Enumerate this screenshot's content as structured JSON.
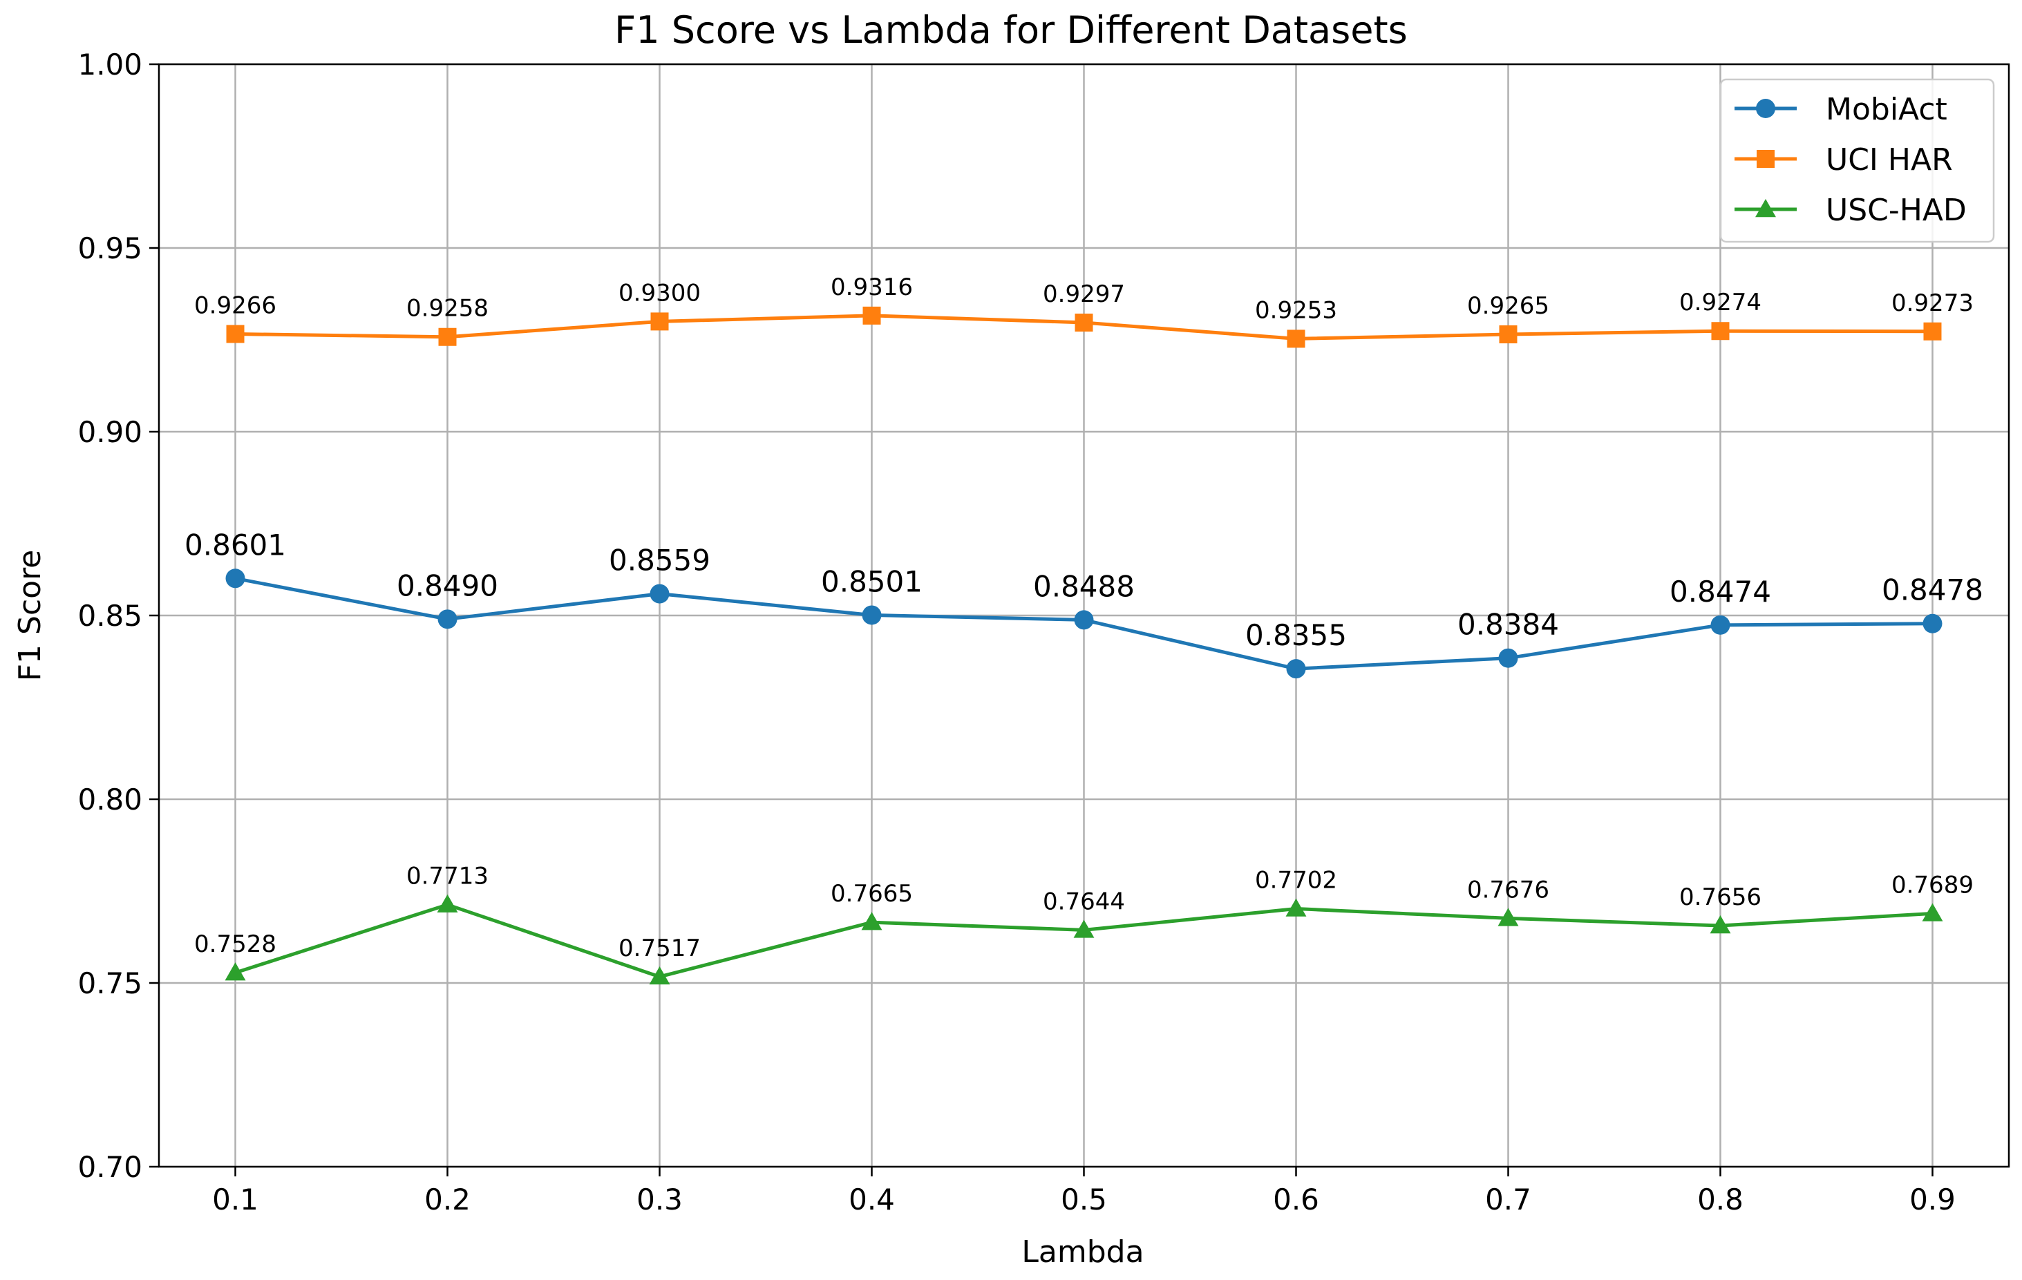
{
  "chart_data": {
    "type": "line",
    "title": "F1 Score vs Lambda for Different Datasets",
    "xlabel": "Lambda",
    "ylabel": "F1 Score",
    "x": [
      0.1,
      0.2,
      0.3,
      0.4,
      0.5,
      0.6,
      0.7,
      0.8,
      0.9
    ],
    "x_tick_labels": [
      "0.1",
      "0.2",
      "0.3",
      "0.4",
      "0.5",
      "0.6",
      "0.7",
      "0.8",
      "0.9"
    ],
    "xlim": [
      0.064,
      0.936
    ],
    "ylim": [
      0.7,
      1.0
    ],
    "y_ticks": [
      0.7,
      0.75,
      0.8,
      0.85,
      0.9,
      0.95,
      1.0
    ],
    "y_tick_labels": [
      "0.70",
      "0.75",
      "0.80",
      "0.85",
      "0.90",
      "0.95",
      "1.00"
    ],
    "grid": true,
    "legend_position": "top-right",
    "series": [
      {
        "name": "MobiAct",
        "color": "#1f77b4",
        "marker": "circle",
        "values": [
          0.8601,
          0.849,
          0.8559,
          0.8501,
          0.8488,
          0.8355,
          0.8384,
          0.8474,
          0.8478
        ],
        "labels": [
          "0.8601",
          "0.8490",
          "0.8559",
          "0.8501",
          "0.8488",
          "0.8355",
          "0.8384",
          "0.8474",
          "0.8478"
        ]
      },
      {
        "name": "UCI HAR",
        "color": "#ff7f0e",
        "marker": "square",
        "values": [
          0.9266,
          0.9258,
          0.93,
          0.9316,
          0.9297,
          0.9253,
          0.9265,
          0.9274,
          0.9273
        ],
        "labels": [
          "0.9266",
          "0.9258",
          "0.9300",
          "0.9316",
          "0.9297",
          "0.9253",
          "0.9265",
          "0.9274",
          "0.9273"
        ]
      },
      {
        "name": "USC-HAD",
        "color": "#2ca02c",
        "marker": "triangle",
        "values": [
          0.7528,
          0.7713,
          0.7517,
          0.7665,
          0.7644,
          0.7702,
          0.7676,
          0.7656,
          0.7689
        ],
        "labels": [
          "0.7528",
          "0.7713",
          "0.7517",
          "0.7665",
          "0.7644",
          "0.7702",
          "0.7676",
          "0.7656",
          "0.7689"
        ]
      }
    ]
  }
}
